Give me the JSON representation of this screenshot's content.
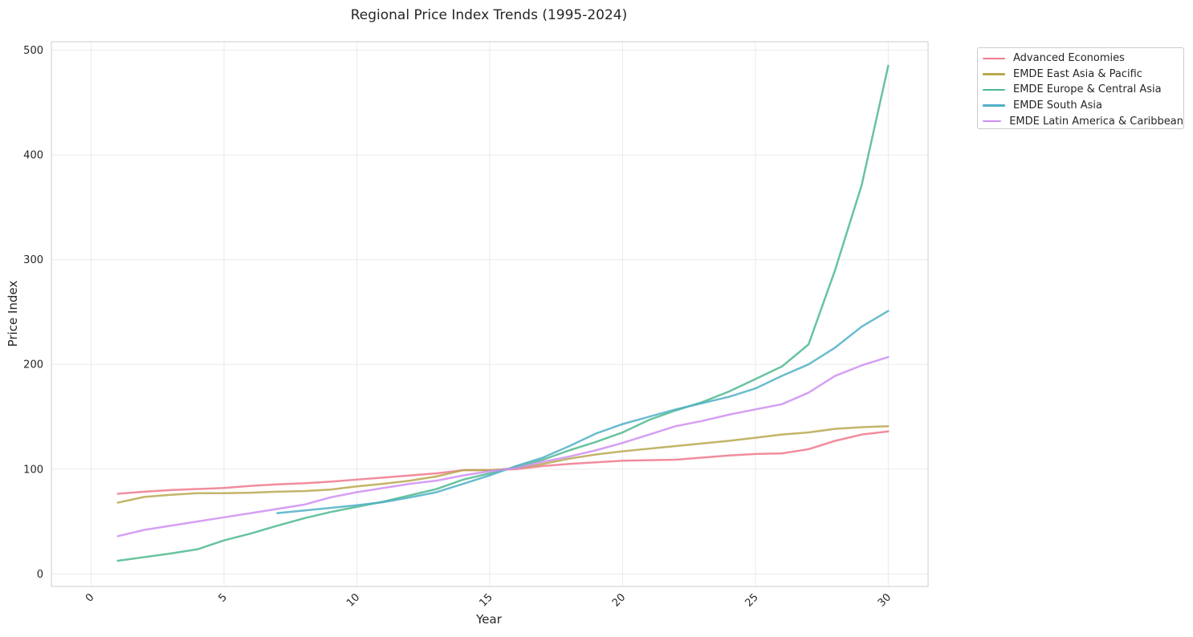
{
  "chart_data": {
    "type": "line",
    "title": "Regional Price Index Trends (1995-2024)",
    "xlabel": "Year",
    "ylabel": "Price Index",
    "xlim": [
      -1.5,
      31.5
    ],
    "ylim": [
      -12,
      508
    ],
    "xticks": [
      0,
      5,
      10,
      15,
      20,
      25,
      30
    ],
    "yticks": [
      0,
      100,
      200,
      300,
      400,
      500
    ],
    "grid": true,
    "legend_position": "outside-top-right",
    "series": [
      {
        "name": "Advanced Economies",
        "color": "#f0788c",
        "x": [
          1,
          2,
          3,
          4,
          5,
          6,
          7,
          8,
          9,
          10,
          11,
          12,
          13,
          14,
          15,
          16,
          17,
          18,
          19,
          20,
          21,
          22,
          23,
          24,
          25,
          26,
          27,
          28,
          29,
          30
        ],
        "y": [
          76.5,
          78.5,
          80,
          81,
          82,
          84,
          85.5,
          86.5,
          88,
          90,
          92,
          94,
          96,
          99,
          99,
          100,
          103,
          105,
          106.5,
          108,
          108.5,
          109,
          111,
          113,
          114.5,
          115,
          119,
          127,
          133,
          136
        ]
      },
      {
        "name": "EMDE East Asia & Pacific",
        "color": "#b8a84e",
        "x": [
          1,
          2,
          3,
          4,
          5,
          6,
          7,
          8,
          9,
          10,
          11,
          12,
          13,
          14,
          15,
          16,
          17,
          18,
          19,
          20,
          21,
          22,
          23,
          24,
          25,
          26,
          27,
          28,
          29,
          30
        ],
        "y": [
          68,
          73.5,
          75.5,
          77,
          77,
          77.5,
          78.5,
          79,
          80.5,
          83.5,
          86,
          89,
          93,
          99,
          99,
          101,
          105,
          110,
          114,
          117,
          119.5,
          122,
          124.5,
          127,
          130,
          133,
          135,
          138.5,
          140,
          141
        ]
      },
      {
        "name": "EMDE Europe & Central Asia",
        "color": "#4db88e",
        "x": [
          1,
          2,
          3,
          4,
          5,
          6,
          7,
          8,
          9,
          10,
          11,
          12,
          13,
          14,
          15,
          16,
          17,
          18,
          19,
          20,
          21,
          22,
          23,
          24,
          25,
          26,
          27,
          28,
          29,
          30
        ],
        "y": [
          12.5,
          16,
          19.5,
          23.5,
          32,
          38.5,
          46,
          53,
          59,
          64,
          69,
          75,
          81,
          90,
          96,
          102,
          109,
          118,
          126,
          135,
          147,
          156,
          164,
          174,
          186,
          198,
          219,
          290,
          371,
          485
        ]
      },
      {
        "name": "EMDE South Asia",
        "color": "#4fb0c6",
        "x": [
          7,
          8,
          9,
          10,
          11,
          12,
          13,
          14,
          15,
          16,
          17,
          18,
          19,
          20,
          21,
          22,
          23,
          24,
          25,
          26,
          27,
          28,
          29,
          30
        ],
        "y": [
          58,
          60.5,
          63,
          65.5,
          68.5,
          73,
          78,
          86,
          94,
          103,
          111,
          122,
          134,
          143,
          150,
          157,
          163,
          169,
          177,
          189,
          200,
          216,
          236,
          251
        ]
      },
      {
        "name": "EMDE Latin America & Caribbean",
        "color": "#cf8ef2",
        "x": [
          1,
          2,
          3,
          4,
          5,
          6,
          7,
          8,
          9,
          10,
          11,
          12,
          13,
          14,
          15,
          16,
          17,
          18,
          19,
          20,
          21,
          22,
          23,
          24,
          25,
          26,
          27,
          28,
          29,
          30
        ],
        "y": [
          36,
          42,
          46,
          50,
          54,
          58,
          62,
          66,
          73,
          78,
          82,
          86,
          89,
          94,
          98,
          101,
          107,
          112,
          118,
          125,
          133,
          141,
          146,
          152,
          157,
          162,
          173,
          189,
          199,
          207
        ]
      }
    ]
  }
}
